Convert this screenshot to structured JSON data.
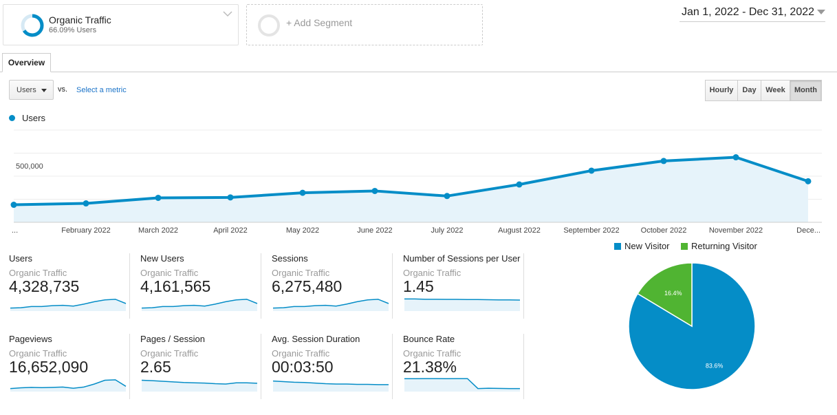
{
  "segments": {
    "active": {
      "name": "Organic Traffic",
      "subtitle": "66.09% Users"
    },
    "add_label": "+ Add Segment"
  },
  "date_range": "Jan 1, 2022 - Dec 31, 2022",
  "tabs": [
    "Overview"
  ],
  "metric_picker": {
    "selected": "Users",
    "vs_label": "vs.",
    "select_metric": "Select a metric"
  },
  "granularity": [
    {
      "label": "Hourly",
      "active": false
    },
    {
      "label": "Day",
      "active": false
    },
    {
      "label": "Week",
      "active": false
    },
    {
      "label": "Month",
      "active": true
    }
  ],
  "chart_data": {
    "type": "area",
    "series": [
      {
        "name": "Users",
        "color": "#058dc7",
        "values": [
          190000,
          205000,
          265000,
          270000,
          320000,
          340000,
          285000,
          410000,
          560000,
          665000,
          705000,
          445000
        ]
      }
    ],
    "x_labels": [
      "...",
      "February 2022",
      "March 2022",
      "April 2022",
      "May 2022",
      "June 2022",
      "July 2022",
      "August 2022",
      "September 2022",
      "October 2022",
      "November 2022",
      "Dece..."
    ],
    "y_ticks": [
      "1,000,000",
      "500,000"
    ],
    "ylim": [
      0,
      1000000
    ],
    "grid": true
  },
  "scorecards": [
    {
      "title": "Users",
      "segment": "Organic Traffic",
      "value": "4,328,735",
      "spark": [
        0.2,
        0.22,
        0.3,
        0.3,
        0.36,
        0.38,
        0.33,
        0.46,
        0.62,
        0.74,
        0.78,
        0.5
      ]
    },
    {
      "title": "New Users",
      "segment": "Organic Traffic",
      "value": "4,161,565",
      "spark": [
        0.2,
        0.22,
        0.3,
        0.3,
        0.36,
        0.38,
        0.33,
        0.46,
        0.62,
        0.74,
        0.78,
        0.5
      ]
    },
    {
      "title": "Sessions",
      "segment": "Organic Traffic",
      "value": "6,275,480",
      "spark": [
        0.2,
        0.22,
        0.3,
        0.3,
        0.36,
        0.38,
        0.33,
        0.46,
        0.62,
        0.74,
        0.78,
        0.5
      ]
    },
    {
      "title": "Number of Sessions per User",
      "segment": "Organic Traffic",
      "value": "1.45",
      "spark": [
        0.8,
        0.8,
        0.78,
        0.78,
        0.77,
        0.77,
        0.76,
        0.76,
        0.75,
        0.74,
        0.74,
        0.73
      ]
    },
    {
      "title": "Pageviews",
      "segment": "Organic Traffic",
      "value": "16,652,090",
      "spark": [
        0.2,
        0.25,
        0.28,
        0.26,
        0.28,
        0.3,
        0.22,
        0.3,
        0.5,
        0.75,
        0.78,
        0.35
      ]
    },
    {
      "title": "Pages / Session",
      "segment": "Organic Traffic",
      "value": "2.65",
      "spark": [
        0.75,
        0.72,
        0.68,
        0.64,
        0.6,
        0.58,
        0.56,
        0.52,
        0.5,
        0.58,
        0.58,
        0.55
      ]
    },
    {
      "title": "Avg. Session Duration",
      "segment": "Organic Traffic",
      "value": "00:03:50",
      "spark": [
        0.7,
        0.66,
        0.62,
        0.6,
        0.56,
        0.52,
        0.5,
        0.5,
        0.48,
        0.48,
        0.46,
        0.46
      ]
    },
    {
      "title": "Bounce Rate",
      "segment": "Organic Traffic",
      "value": "21.38%",
      "spark": [
        0.85,
        0.85,
        0.86,
        0.86,
        0.85,
        0.86,
        0.86,
        0.2,
        0.22,
        0.21,
        0.2,
        0.2
      ]
    }
  ],
  "pie": {
    "legend": [
      {
        "label": "New Visitor",
        "color": "#058dc7"
      },
      {
        "label": "Returning Visitor",
        "color": "#50b432"
      }
    ],
    "slices": [
      {
        "label": "New Visitor",
        "value": 83.6,
        "text": "83.6%",
        "color": "#058dc7"
      },
      {
        "label": "Returning Visitor",
        "value": 16.4,
        "text": "16.4%",
        "color": "#50b432"
      }
    ]
  }
}
